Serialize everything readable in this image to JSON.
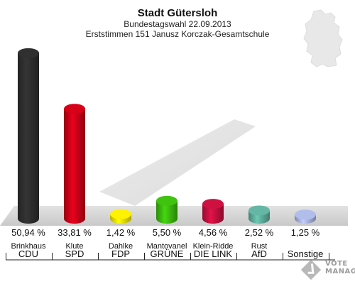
{
  "header": {
    "title": "Stadt Gütersloh",
    "subtitle1": "Bundestagswahl 22.09.2013",
    "subtitle2": "Erststimmen 151 Janusz Korczak-Gesamtschule"
  },
  "chart_data": {
    "type": "bar",
    "title": "Stadt Gütersloh",
    "categories": [
      "CDU",
      "SPD",
      "FDP",
      "GRÜNE",
      "DIE LINKE",
      "AfD",
      "Sonstige"
    ],
    "candidates": [
      "Brinkhaus",
      "Klute",
      "Dahlke",
      "Mantovanelli",
      "Klein-Ridder",
      "Rust",
      ""
    ],
    "candidate_labels": [
      "Brinkhaus",
      "Klute",
      "Dahlke",
      "Mantovanel",
      "Klein-Ridde",
      "Rust",
      ""
    ],
    "party_labels": [
      "CDU",
      "SPD",
      "FDP",
      "GRÜNE",
      "DIE LINK",
      "AfD",
      "Sonstige"
    ],
    "values": [
      50.94,
      33.81,
      1.42,
      5.5,
      4.56,
      2.52,
      1.25
    ],
    "value_labels": [
      "50,94 %",
      "33,81 %",
      "1,42 %",
      "5,50 %",
      "4,56 %",
      "2,52 %",
      "1,25 %"
    ],
    "colors": [
      "#2e2e2e",
      "#cc0018",
      "#f5e600",
      "#3cba0e",
      "#c5103f",
      "#5fae9c",
      "#a9b4e0"
    ],
    "ylim": [
      0,
      52
    ],
    "grid": false,
    "legend": "none"
  },
  "branding": {
    "logo_text_line1": "VOTE",
    "logo_text_line2": "MANAGER"
  }
}
